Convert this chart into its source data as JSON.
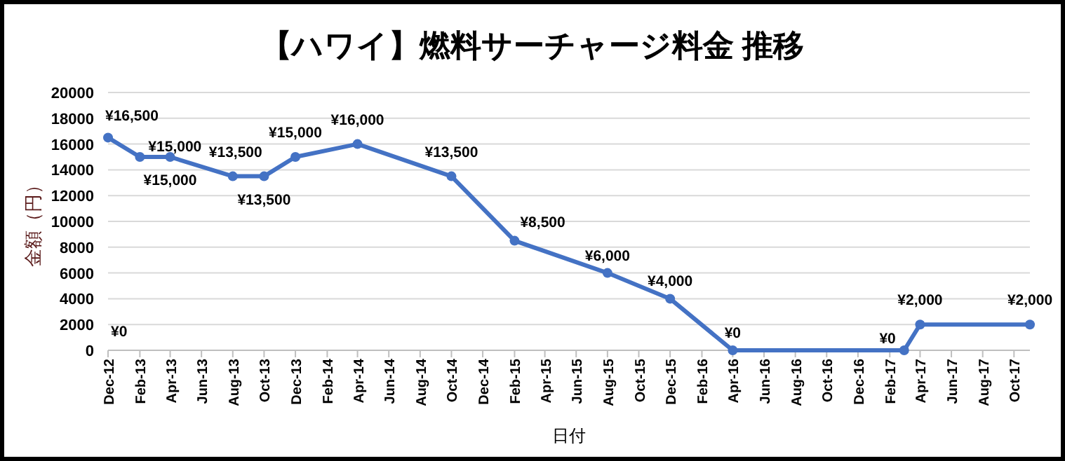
{
  "chart_data": {
    "type": "line",
    "title": "【ハワイ】燃料サーチャージ料金 推移",
    "xlabel": "日付",
    "ylabel": "金額（円）",
    "x": [
      "2012-12",
      "2013-02",
      "2013-04",
      "2013-08",
      "2013-10",
      "2013-12",
      "2014-04",
      "2014-10",
      "2015-02",
      "2015-08",
      "2015-12",
      "2016-04",
      "2017-03",
      "2017-04",
      "2017-11"
    ],
    "series": [
      {
        "color": "#4472c4",
        "values": [
          16500,
          15000,
          15000,
          13500,
          13500,
          15000,
          16000,
          13500,
          8500,
          6000,
          4000,
          0,
          0,
          2000,
          2000
        ],
        "value_labels": [
          "¥16,500",
          "¥15,000",
          "¥15,000",
          "¥13,500",
          "¥13,500",
          "¥15,000",
          "¥16,000",
          "¥13,500",
          "¥8,500",
          "¥6,000",
          "¥4,000",
          "¥0",
          "¥0",
          "¥2,000",
          "¥2,000"
        ]
      }
    ],
    "annotations": [
      "¥0"
    ],
    "xlim": [
      "2012-12",
      "2017-11"
    ],
    "xticks": [
      {
        "value": "2012-12",
        "label": "Dec-12"
      },
      {
        "value": "2013-02",
        "label": "Feb-13"
      },
      {
        "value": "2013-04",
        "label": "Apr-13"
      },
      {
        "value": "2013-06",
        "label": "Jun-13"
      },
      {
        "value": "2013-08",
        "label": "Aug-13"
      },
      {
        "value": "2013-10",
        "label": "Oct-13"
      },
      {
        "value": "2013-12",
        "label": "Dec-13"
      },
      {
        "value": "2014-02",
        "label": "Feb-14"
      },
      {
        "value": "2014-04",
        "label": "Apr-14"
      },
      {
        "value": "2014-06",
        "label": "Jun-14"
      },
      {
        "value": "2014-08",
        "label": "Aug-14"
      },
      {
        "value": "2014-10",
        "label": "Oct-14"
      },
      {
        "value": "2014-12",
        "label": "Dec-14"
      },
      {
        "value": "2015-02",
        "label": "Feb-15"
      },
      {
        "value": "2015-04",
        "label": "Apr-15"
      },
      {
        "value": "2015-06",
        "label": "Jun-15"
      },
      {
        "value": "2015-08",
        "label": "Aug-15"
      },
      {
        "value": "2015-10",
        "label": "Oct-15"
      },
      {
        "value": "2015-12",
        "label": "Dec-15"
      },
      {
        "value": "2016-02",
        "label": "Feb-16"
      },
      {
        "value": "2016-04",
        "label": "Apr-16"
      },
      {
        "value": "2016-06",
        "label": "Jun-16"
      },
      {
        "value": "2016-08",
        "label": "Aug-16"
      },
      {
        "value": "2016-10",
        "label": "Oct-16"
      },
      {
        "value": "2016-12",
        "label": "Dec-16"
      },
      {
        "value": "2017-02",
        "label": "Feb-17"
      },
      {
        "value": "2017-04",
        "label": "Apr-17"
      },
      {
        "value": "2017-06",
        "label": "Jun-17"
      },
      {
        "value": "2017-08",
        "label": "Aug-17"
      },
      {
        "value": "2017-10",
        "label": "Oct-17"
      }
    ],
    "ylim": [
      0,
      20000
    ],
    "yticks": [
      0,
      2000,
      4000,
      6000,
      8000,
      10000,
      12000,
      14000,
      16000,
      18000,
      20000
    ],
    "grid": "y",
    "marker": "circle",
    "line_style": "solid"
  }
}
